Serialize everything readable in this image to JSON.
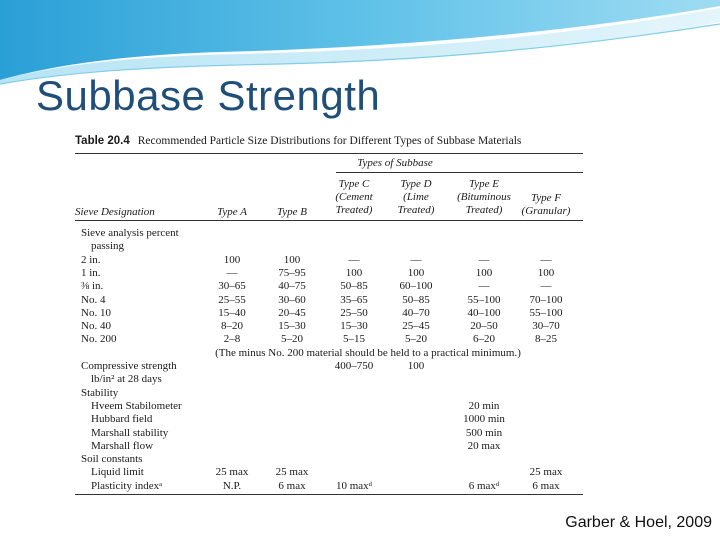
{
  "slide_title": "Subbase Strength",
  "footer": "Garber & Hoel, 2009",
  "table": {
    "number": "Table 20.4",
    "caption": "Recommended Particle Size Distributions for Different Types of Subbase Materials",
    "group_header": "Types of Subbase",
    "col_headers": [
      "Sieve Designation",
      "Type A",
      "Type B",
      "Type C\n(Cement\nTreated)",
      "Type D\n(Lime\nTreated)",
      "Type E\n(Bituminous\nTreated)",
      "Type F\n(Granular)"
    ],
    "rows": [
      {
        "label": "Sieve analysis percent",
        "cells": [
          "",
          "",
          "",
          "",
          "",
          ""
        ]
      },
      {
        "label": "passing",
        "indent": 1,
        "cells": [
          "",
          "",
          "",
          "",
          "",
          ""
        ]
      },
      {
        "label": "2 in.",
        "cells": [
          "100",
          "100",
          "—",
          "—",
          "—",
          "—"
        ]
      },
      {
        "label": "1 in.",
        "cells": [
          "—",
          "75–95",
          "100",
          "100",
          "100",
          "100"
        ]
      },
      {
        "label": "⅜ in.",
        "cells": [
          "30–65",
          "40–75",
          "50–85",
          "60–100",
          "—",
          "—"
        ]
      },
      {
        "label": "No. 4",
        "cells": [
          "25–55",
          "30–60",
          "35–65",
          "50–85",
          "55–100",
          "70–100"
        ]
      },
      {
        "label": "No. 10",
        "cells": [
          "15–40",
          "20–45",
          "25–50",
          "40–70",
          "40–100",
          "55–100"
        ]
      },
      {
        "label": "No. 40",
        "cells": [
          "8–20",
          "15–30",
          "15–30",
          "25–45",
          "20–50",
          "30–70"
        ]
      },
      {
        "label": "No. 200",
        "cells": [
          "2–8",
          "5–20",
          "5–15",
          "5–20",
          "6–20",
          "8–25"
        ]
      },
      {
        "label": "",
        "note": "(The minus No. 200 material should be held to a practical minimum.)",
        "cells": []
      },
      {
        "label": "Compressive strength",
        "cells": [
          "",
          "",
          "400–750",
          "100",
          "",
          ""
        ]
      },
      {
        "label": "lb/in² at 28 days",
        "indent": 1,
        "cells": [
          "",
          "",
          "",
          "",
          "",
          ""
        ]
      },
      {
        "label": "Stability",
        "cells": [
          "",
          "",
          "",
          "",
          "",
          ""
        ]
      },
      {
        "label": "Hveem Stabilometer",
        "indent": 1,
        "cells": [
          "",
          "",
          "",
          "",
          "20 min",
          ""
        ]
      },
      {
        "label": "Hubbard field",
        "indent": 1,
        "cells": [
          "",
          "",
          "",
          "",
          "1000 min",
          ""
        ]
      },
      {
        "label": "Marshall stability",
        "indent": 1,
        "cells": [
          "",
          "",
          "",
          "",
          "500 min",
          ""
        ]
      },
      {
        "label": "Marshall flow",
        "indent": 1,
        "cells": [
          "",
          "",
          "",
          "",
          "20 max",
          ""
        ]
      },
      {
        "label": "Soil constants",
        "cells": [
          "",
          "",
          "",
          "",
          "",
          ""
        ]
      },
      {
        "label": "Liquid limit",
        "indent": 1,
        "cells": [
          "25 max",
          "25 max",
          "",
          "",
          "",
          "25 max"
        ]
      },
      {
        "label": "Plasticity indexᵃ",
        "indent": 1,
        "cells": [
          "N.P.",
          "6 max",
          "10 maxᵈ",
          "",
          "6 maxᵈ",
          "6 max"
        ]
      }
    ]
  }
}
